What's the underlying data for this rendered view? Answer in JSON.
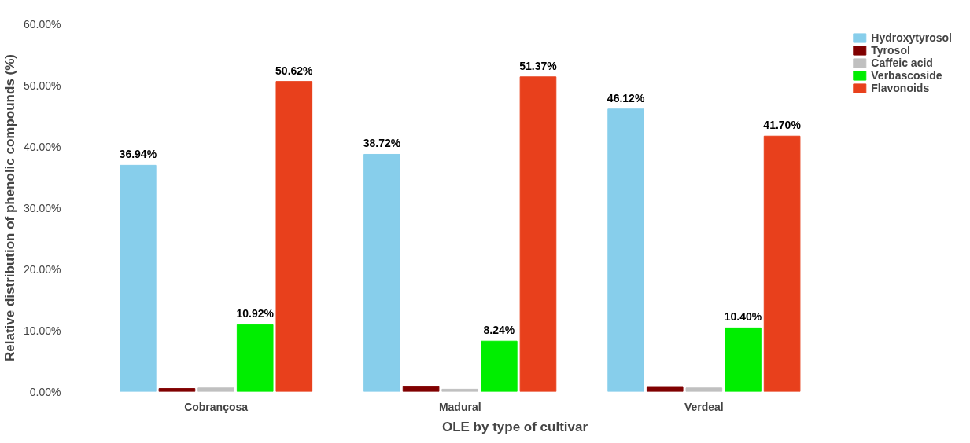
{
  "chart_data": {
    "type": "bar",
    "xlabel": "OLE by type of cultivar",
    "ylabel": "Relative distribution of phenolic compounds (%)",
    "categories": [
      "Cobrançosa",
      "Madural",
      "Verdeal"
    ],
    "series": [
      {
        "name": "Hydroxytyrosol",
        "color": "#87ceeb",
        "values": [
          36.94,
          38.72,
          46.12
        ],
        "value_labels": [
          "36.94%",
          "38.72%",
          "46.12%"
        ]
      },
      {
        "name": "Tyrosol",
        "color": "#800000",
        "values": [
          0.5,
          0.8,
          0.7
        ],
        "value_labels": [
          null,
          null,
          null
        ]
      },
      {
        "name": "Caffeic acid",
        "color": "#c0c0c0",
        "values": [
          0.6,
          0.4,
          0.6
        ],
        "value_labels": [
          null,
          null,
          null
        ]
      },
      {
        "name": "Verbascoside",
        "color": "#00ee00",
        "values": [
          10.92,
          8.24,
          10.4
        ],
        "value_labels": [
          "10.92%",
          "8.24%",
          "10.40%"
        ]
      },
      {
        "name": "Flavonoids",
        "color": "#e8401c",
        "values": [
          50.62,
          51.37,
          41.7
        ],
        "value_labels": [
          "50.62%",
          "51.37%",
          "41.70%"
        ]
      }
    ],
    "ylim": [
      0,
      60
    ],
    "yticks": [
      {
        "value": 0,
        "label": "0.00%"
      },
      {
        "value": 10,
        "label": "10.00%"
      },
      {
        "value": 20,
        "label": "20.00%"
      },
      {
        "value": 30,
        "label": "30.00%"
      },
      {
        "value": 40,
        "label": "40.00%"
      },
      {
        "value": 50,
        "label": "50.00%"
      },
      {
        "value": 60,
        "label": "60.00%"
      }
    ],
    "grid": false,
    "legend": "top right"
  }
}
